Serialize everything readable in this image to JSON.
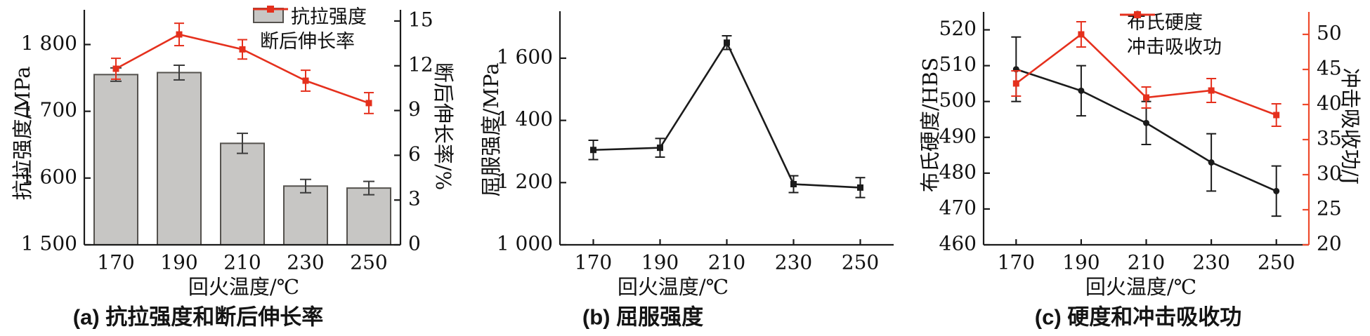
{
  "colors": {
    "red": "#e5301d",
    "red_axis": "#ee4a2c",
    "black": "#1b1b1b",
    "bar_fill": "#c7c6c4",
    "bar_edge": "#55524e",
    "err_dark": "#3c3c3c",
    "text": "#111111"
  },
  "chart_data": [
    {
      "id": "a",
      "type": "bar",
      "caption": "(a) 抗拉强度和断后伸长率",
      "xlabel": "回火温度/℃",
      "categories": [
        "170",
        "190",
        "210",
        "230",
        "250"
      ],
      "left_axis": {
        "label": "抗拉强度/MPa",
        "ylim": [
          1500,
          1852
        ],
        "ticks": [
          1500,
          1600,
          1700,
          1800
        ],
        "tick_labels": [
          "1 500",
          "1 600",
          "1 700",
          "1 800"
        ]
      },
      "right_axis": {
        "label": "断后伸长率/%",
        "ylim": [
          0,
          15.75
        ],
        "ticks": [
          0,
          3,
          6,
          9,
          12,
          15
        ],
        "tick_labels": [
          "0",
          "3",
          "6",
          "9",
          "12",
          "15"
        ]
      },
      "series": [
        {
          "name": "抗拉强度",
          "type": "bar",
          "axis": "left",
          "color": "gray",
          "values": [
            1755,
            1758,
            1652,
            1588,
            1585
          ],
          "errors": [
            10,
            11,
            15,
            10,
            10
          ]
        },
        {
          "name": "断后伸长率",
          "type": "line",
          "axis": "right",
          "marker": "square",
          "color": "red",
          "values": [
            11.8,
            14.1,
            13.1,
            11.0,
            9.5
          ],
          "errors": [
            0.7,
            0.75,
            0.65,
            0.7,
            0.7
          ]
        }
      ],
      "legend_position": "top-right-inside"
    },
    {
      "id": "b",
      "type": "line",
      "caption": "(b) 屈服强度",
      "xlabel": "回火温度/℃",
      "categories": [
        "170",
        "190",
        "210",
        "230",
        "250"
      ],
      "left_axis": {
        "label": "屈服强度/MPa",
        "ylim": [
          1000,
          1751
        ],
        "ticks": [
          1000,
          1200,
          1400,
          1600
        ],
        "tick_labels": [
          "1 000",
          "1 200",
          "1 400",
          "1 600"
        ]
      },
      "series": [
        {
          "name": "屈服强度",
          "type": "line",
          "axis": "left",
          "marker": "square",
          "color": "black",
          "values": [
            1305,
            1312,
            1650,
            1195,
            1184
          ],
          "errors": [
            31,
            30,
            22,
            27,
            32
          ]
        }
      ]
    },
    {
      "id": "c",
      "type": "line",
      "caption": "(c) 硬度和冲击吸收功",
      "xlabel": "回火温度/℃",
      "categories": [
        "170",
        "190",
        "210",
        "230",
        "250"
      ],
      "left_axis": {
        "label": "布氏硬度/HBS",
        "ylim": [
          460,
          525
        ],
        "ticks": [
          460,
          470,
          480,
          490,
          500,
          510,
          520
        ],
        "tick_labels": [
          "460",
          "470",
          "480",
          "490",
          "500",
          "510",
          "520"
        ]
      },
      "right_axis": {
        "label": "冲击吸收功/J",
        "ylim": [
          20,
          53.2
        ],
        "ticks": [
          20,
          25,
          30,
          35,
          40,
          45,
          50
        ],
        "tick_labels": [
          "20",
          "25",
          "30",
          "35",
          "40",
          "45",
          "50"
        ],
        "axis_color": "red"
      },
      "series": [
        {
          "name": "布氏硬度",
          "type": "line",
          "axis": "left",
          "marker": "circle",
          "color": "black",
          "values": [
            509,
            503,
            494,
            483,
            475
          ],
          "errors": [
            9,
            7,
            6,
            8,
            7
          ]
        },
        {
          "name": "冲击吸收功",
          "type": "line",
          "axis": "right",
          "marker": "square",
          "color": "red",
          "values": [
            43,
            50,
            41,
            42,
            38.5
          ],
          "errors": [
            1.8,
            1.8,
            1.5,
            1.7,
            1.6
          ]
        }
      ],
      "legend_position": "top-right-inside"
    }
  ]
}
